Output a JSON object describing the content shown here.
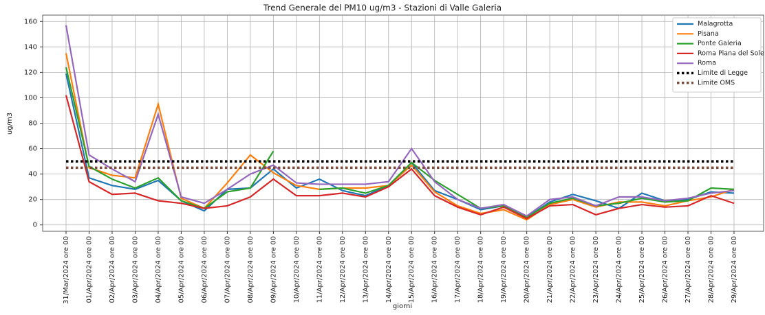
{
  "chart_data": {
    "type": "line",
    "title": "Trend Generale del PM10 ug/m3 - Stazioni di Valle Galeria",
    "x_label": "giorni",
    "y_label": "ug/m3",
    "categories": [
      "31/Mar/2024 ore 00",
      "01/Apr/2024 ore 00",
      "02/Apr/2024 ore 00",
      "03/Apr/2024 ore 00",
      "04/Apr/2024 ore 00",
      "05/Apr/2024 ore 00",
      "06/Apr/2024 ore 00",
      "07/Apr/2024 ore 00",
      "08/Apr/2024 ore 00",
      "09/Apr/2024 ore 00",
      "10/Apr/2024 ore 00",
      "11/Apr/2024 ore 00",
      "12/Apr/2024 ore 00",
      "13/Apr/2024 ore 00",
      "14/Apr/2024 ore 00",
      "15/Apr/2024 ore 00",
      "16/Apr/2024 ore 00",
      "17/Apr/2024 ore 00",
      "18/Apr/2024 ore 00",
      "19/Apr/2024 ore 00",
      "20/Apr/2024 ore 00",
      "21/Apr/2024 ore 00",
      "22/Apr/2024 ore 00",
      "23/Apr/2024 ore 00",
      "24/Apr/2024 ore 00",
      "25/Apr/2024 ore 00",
      "26/Apr/2024 ore 00",
      "27/Apr/2024 ore 00",
      "28/Apr/2024 ore 00",
      "29/Apr/2024 ore 00"
    ],
    "series": [
      {
        "name": "Malagrotta",
        "color": "#1f77b4",
        "values": [
          119,
          37,
          31,
          28,
          35,
          19,
          11,
          28,
          29,
          44,
          29,
          36,
          27,
          23,
          31,
          49,
          27,
          20,
          12,
          15,
          6,
          18,
          24,
          19,
          13,
          25,
          19,
          20,
          26,
          25
        ]
      },
      {
        "name": "Pisana",
        "color": "#ff7f0e",
        "values": [
          135,
          45,
          39,
          37,
          95,
          21,
          13,
          33,
          55,
          41,
          31,
          28,
          29,
          29,
          31,
          47,
          26,
          15,
          9,
          12,
          4,
          16,
          20,
          14,
          18,
          18,
          15,
          19,
          22,
          28
        ]
      },
      {
        "name": "Ponte Galeria",
        "color": "#2ca02c",
        "values": [
          124,
          46,
          36,
          29,
          37,
          19,
          13,
          26,
          29,
          58,
          null,
          28,
          29,
          25,
          31,
          49,
          35,
          24,
          13,
          15,
          6,
          17,
          21,
          15,
          17,
          21,
          18,
          19,
          29,
          28
        ]
      },
      {
        "name": "Roma Piana del Sole",
        "color": "#d62728",
        "values": [
          102,
          34,
          24,
          25,
          19,
          17,
          13,
          15,
          22,
          36,
          23,
          23,
          25,
          22,
          30,
          44,
          23,
          14,
          8,
          14,
          5,
          15,
          16,
          8,
          13,
          16,
          14,
          15,
          23,
          17
        ]
      },
      {
        "name": "Roma",
        "color": "#9467bd",
        "values": [
          157,
          55,
          44,
          34,
          87,
          22,
          17,
          28,
          40,
          47,
          33,
          32,
          32,
          32,
          34,
          60,
          34,
          20,
          13,
          16,
          7,
          20,
          22,
          15,
          22,
          22,
          19,
          21,
          25,
          27
        ]
      }
    ],
    "hlines": [
      {
        "name": "Limite di Legge",
        "color": "#000000",
        "value": 50
      },
      {
        "name": "Limite OMS",
        "color": "#7b4a3a",
        "value": 45
      }
    ],
    "ylim": [
      -5,
      165
    ],
    "yticks": [
      0,
      20,
      40,
      60,
      80,
      100,
      120,
      140,
      160
    ],
    "grid": true,
    "legend": "upper right"
  }
}
